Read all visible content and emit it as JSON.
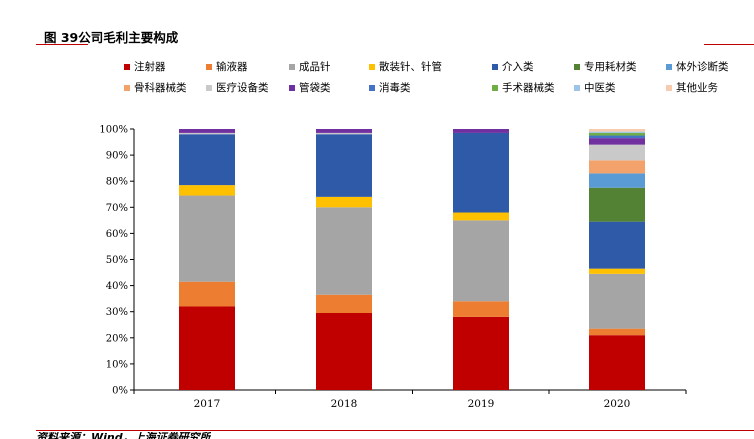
{
  "page": {
    "title": "图 39公司毛利主要构成",
    "source": "资料来源：Wind，上海证券研究所"
  },
  "colors": {
    "注射器": "#c00000",
    "输液器": "#ed7d31",
    "成品针": "#a5a5a5",
    "散装针、针管": "#ffc000",
    "介入类": "#2e5aa8",
    "专用耗材类": "#548235",
    "体外诊断类": "#5b9bd5",
    "骨科器械类": "#f4a26b",
    "医疗设备类": "#c9c9c9",
    "管袋类": "#7030a0",
    "消毒类": "#4472c4",
    "手术器械类": "#70ad47",
    "中医类": "#9dc3e6",
    "其他业务": "#f8cbad"
  },
  "chart_data": {
    "type": "bar",
    "stacked": true,
    "categories": [
      "2017",
      "2018",
      "2019",
      "2020"
    ],
    "ylim": [
      0,
      100
    ],
    "ytick_labels": [
      "0%",
      "10%",
      "20%",
      "30%",
      "40%",
      "50%",
      "60%",
      "70%",
      "80%",
      "90%",
      "100%"
    ],
    "xlabel": "",
    "ylabel": "",
    "legend_position": "top",
    "legend_rows": [
      [
        "注射器",
        "输液器",
        "成品针",
        "散装针、针管",
        "介入类",
        "专用耗材类",
        "体外诊断类"
      ],
      [
        "骨科器械类",
        "医疗设备类",
        "管袋类",
        "消毒类",
        "手术器械类",
        "中医类",
        "其他业务"
      ]
    ],
    "series": [
      {
        "name": "注射器",
        "values": [
          32,
          29.5,
          28,
          21
        ]
      },
      {
        "name": "输液器",
        "values": [
          9.5,
          7,
          6,
          2.5
        ]
      },
      {
        "name": "成品针",
        "values": [
          33,
          33.5,
          31,
          21
        ]
      },
      {
        "name": "散装针、针管",
        "values": [
          4,
          4,
          3,
          2
        ]
      },
      {
        "name": "介入类",
        "values": [
          19.5,
          24,
          30.5,
          18
        ]
      },
      {
        "name": "专用耗材类",
        "values": [
          0,
          0,
          0,
          13
        ]
      },
      {
        "name": "体外诊断类",
        "values": [
          0,
          0,
          0,
          5.5
        ]
      },
      {
        "name": "骨科器械类",
        "values": [
          0,
          0,
          0,
          5
        ]
      },
      {
        "name": "医疗设备类",
        "values": [
          0.5,
          0.5,
          0,
          6
        ]
      },
      {
        "name": "管袋类",
        "values": [
          1.5,
          1.5,
          1.5,
          2.5
        ]
      },
      {
        "name": "消毒类",
        "values": [
          0,
          0,
          0,
          1
        ]
      },
      {
        "name": "手术器械类",
        "values": [
          0,
          0,
          0,
          1
        ]
      },
      {
        "name": "中医类",
        "values": [
          0,
          0,
          0,
          0.5
        ]
      },
      {
        "name": "其他业务",
        "values": [
          0,
          0,
          0,
          1
        ]
      }
    ]
  }
}
